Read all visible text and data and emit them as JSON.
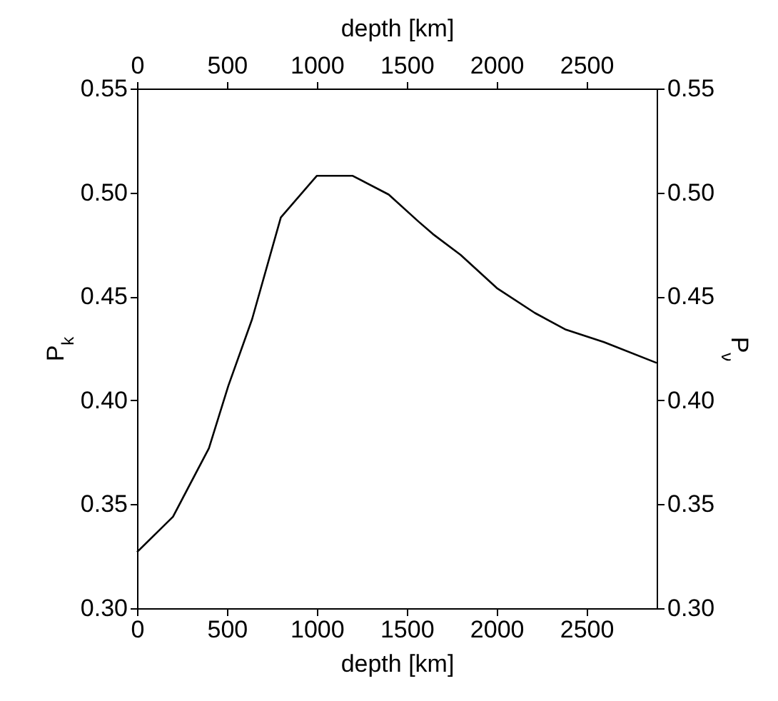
{
  "chart_data": {
    "type": "line",
    "xlabel": "depth [km]",
    "x2label": "depth [km]",
    "ylabel": "P$_{k}$",
    "y2label": "P$_{ν}$",
    "xlim": [
      0,
      2891
    ],
    "xticks": [
      0,
      500,
      1000,
      1500,
      2000,
      2500
    ],
    "x2lim": [
      0,
      2891
    ],
    "x2ticks": [
      0,
      500,
      1000,
      1500,
      2000,
      2500
    ],
    "ylim": [
      0.3,
      0.55
    ],
    "yticks": [
      {
        "value": 0.3,
        "label": "0.30"
      },
      0.35,
      {
        "value": 0.4,
        "label": "0.40"
      },
      0.45,
      {
        "value": 0.5,
        "label": "0.50"
      },
      0.55
    ],
    "y2lim": [
      0.3,
      0.55
    ],
    "y2ticks": [
      {
        "value": 0.3,
        "label": "0.30"
      },
      0.35,
      {
        "value": 0.4,
        "label": "0.40"
      },
      0.45,
      {
        "value": 0.5,
        "label": "0.50"
      },
      0.55
    ],
    "series": [
      {
        "color": "#000000",
        "x": [
          0,
          200,
          400,
          508,
          640,
          800,
          1000,
          1200,
          1400,
          1566,
          1646,
          1800,
          2002,
          2214,
          2386,
          2598,
          2891
        ],
        "values": [
          0.327,
          0.344,
          0.377,
          0.407,
          0.439,
          0.488,
          0.508,
          0.508,
          0.499,
          0.486,
          0.48,
          0.47,
          0.454,
          0.442,
          0.434,
          0.428,
          0.418
        ]
      }
    ],
    "line_style": "solid"
  }
}
